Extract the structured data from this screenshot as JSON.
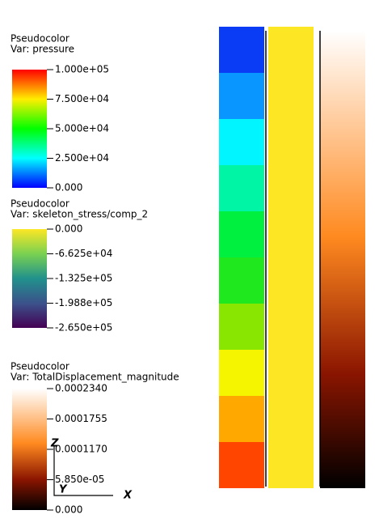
{
  "legends": [
    {
      "title": "Pseudocolor",
      "variable": "Var: pressure",
      "ticks": [
        "1.000e+05",
        "7.500e+04",
        "5.000e+04",
        "2.500e+04",
        "0.000"
      ]
    },
    {
      "title": "Pseudocolor",
      "variable": "Var: skeleton_stress/comp_2",
      "ticks": [
        "0.000",
        "-6.625e+04",
        "-1.325e+05",
        "-1.988e+05",
        "-2.650e+05"
      ]
    },
    {
      "title": "Pseudocolor",
      "variable": "Var: TotalDisplacement_magnitude",
      "ticks": [
        "0.0002340",
        "0.0001755",
        "0.0001170",
        "5.850e-05",
        "0.000"
      ]
    }
  ],
  "triad": {
    "z": "Z",
    "y": "Y",
    "x": "X"
  }
}
